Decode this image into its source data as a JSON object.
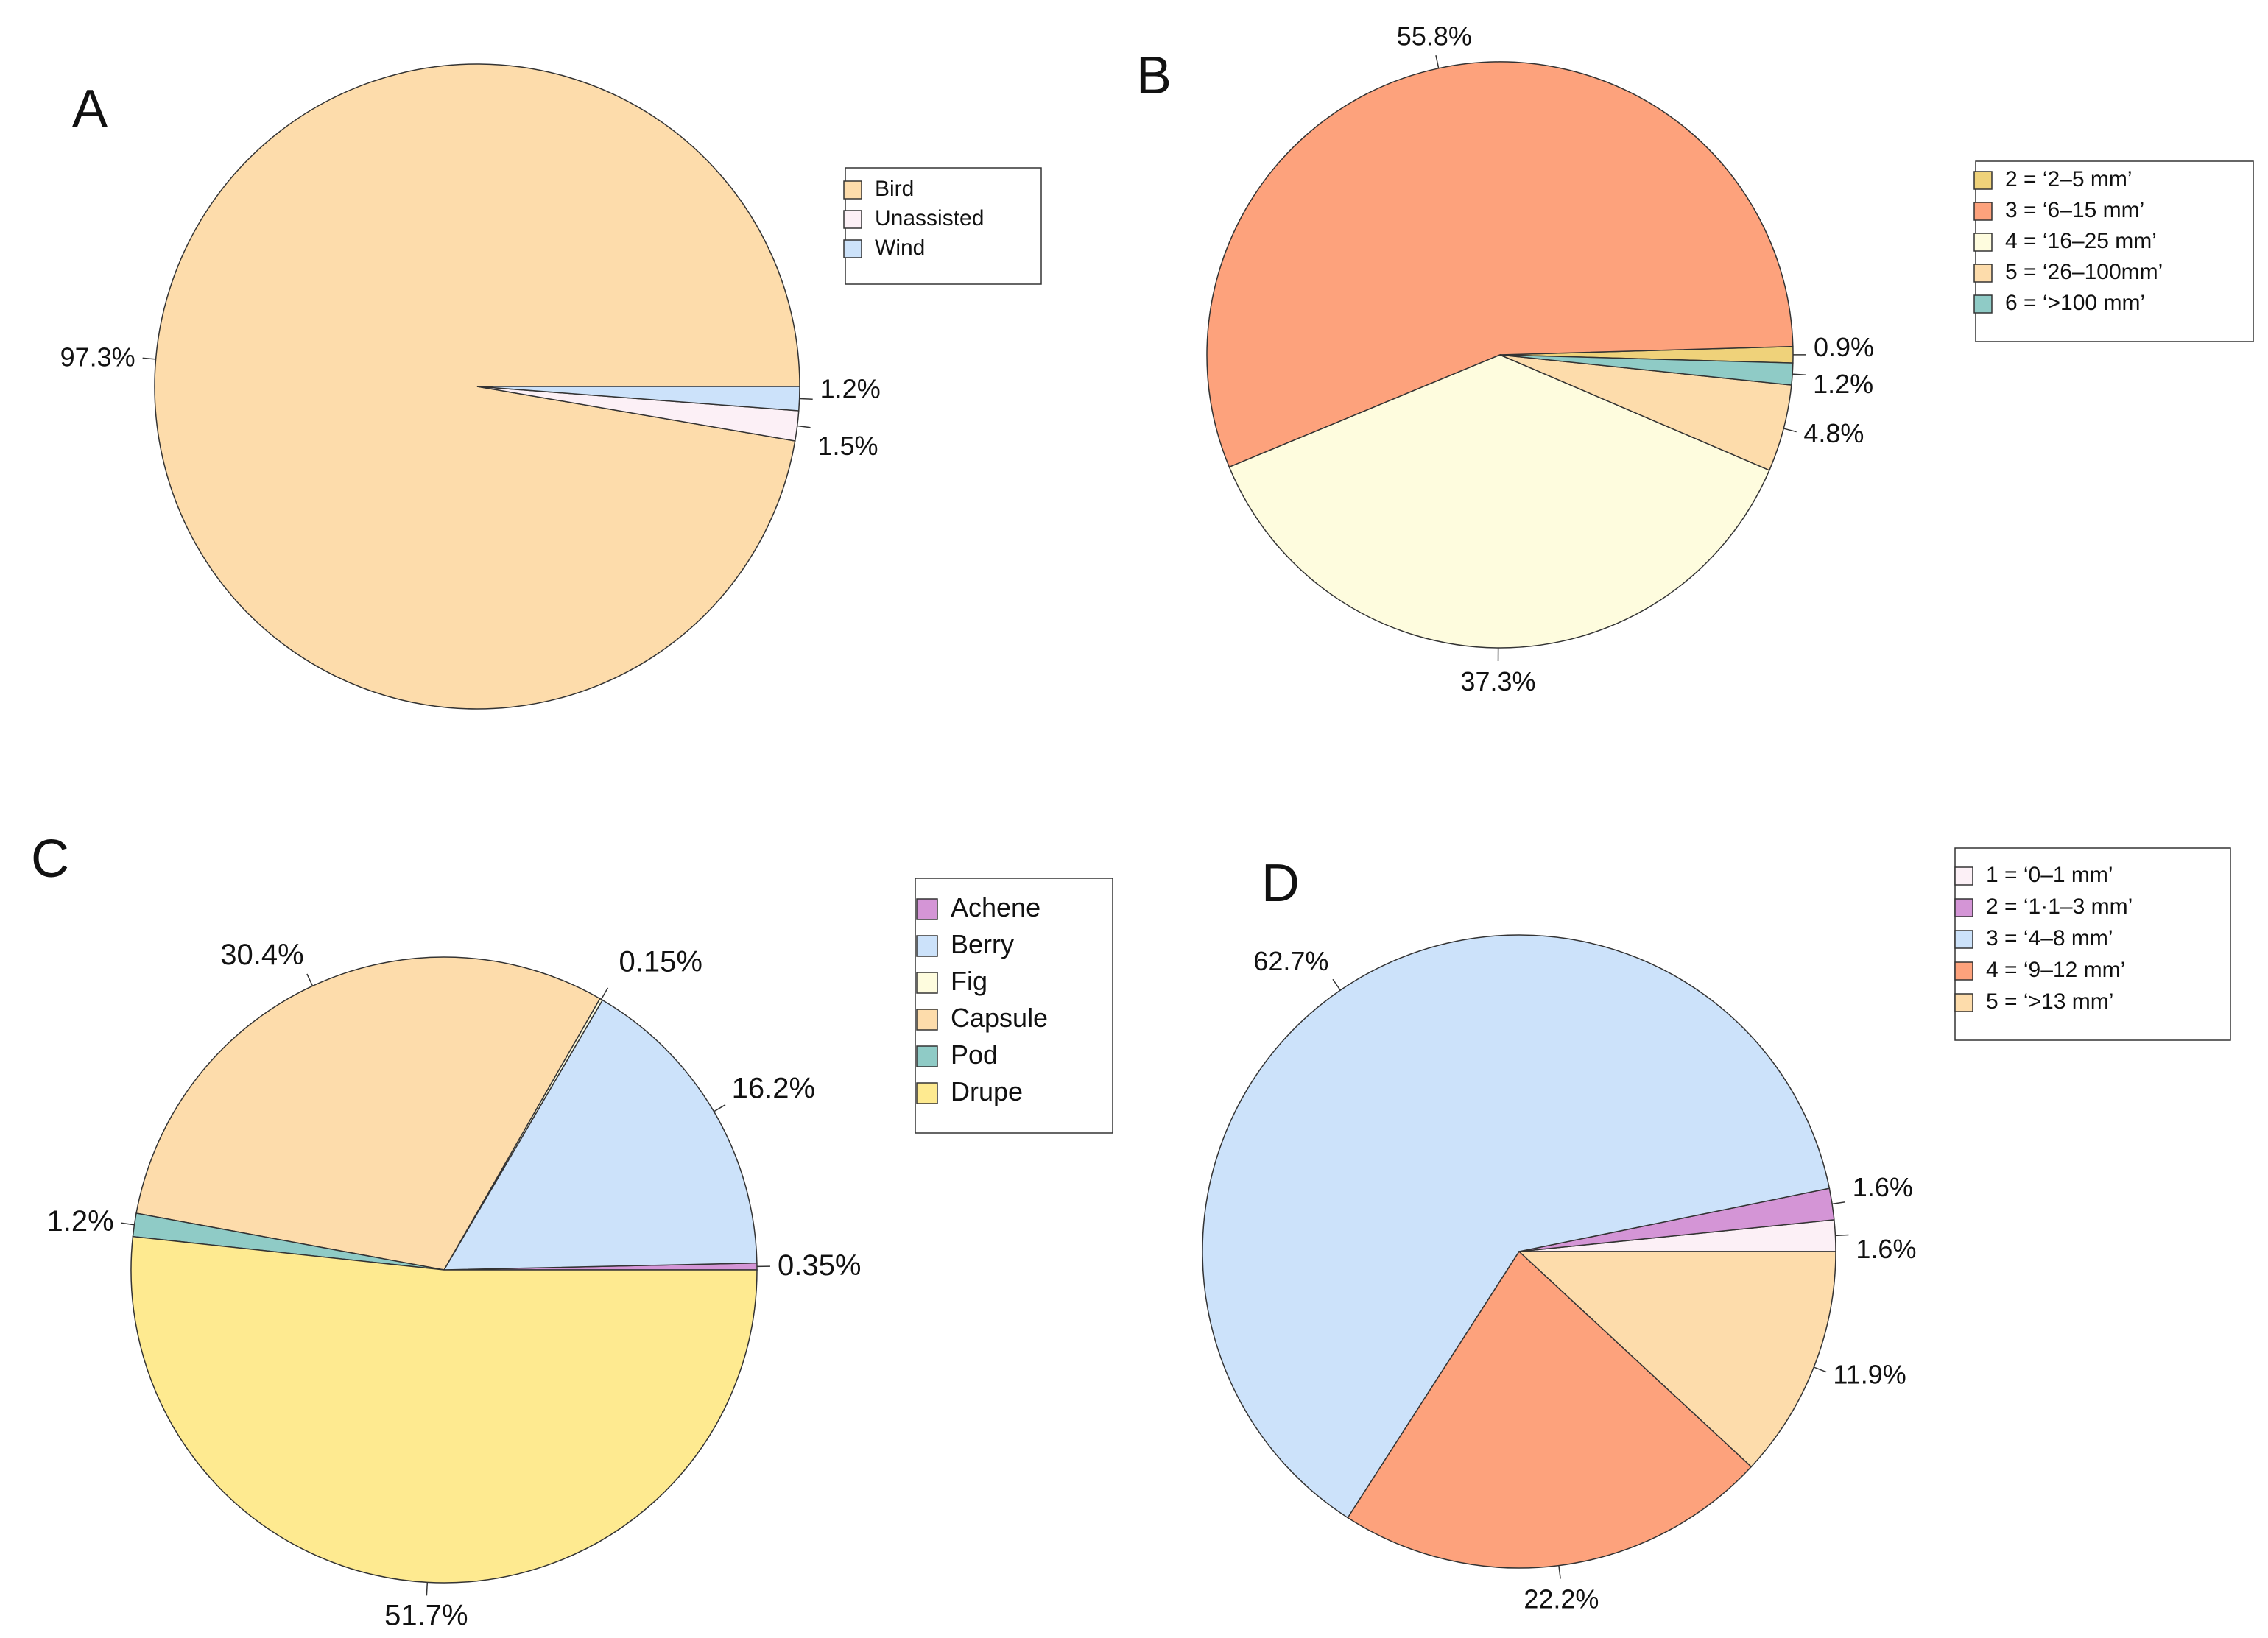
{
  "chart_data": [
    {
      "id": "A",
      "type": "pie",
      "title": "A",
      "legend_position": "right",
      "slices": [
        {
          "name": "Bird",
          "value": 97.3,
          "label": "97.3%",
          "color": "#FDDCAB"
        },
        {
          "name": "Unassisted",
          "value": 1.5,
          "label": "1.5%",
          "color": "#FCF0F6"
        },
        {
          "name": "Wind",
          "value": 1.2,
          "label": "1.2%",
          "color": "#CCE2FA"
        }
      ],
      "legend": [
        "Bird",
        "Unassisted",
        "Wind"
      ]
    },
    {
      "id": "B",
      "type": "pie",
      "title": "B",
      "legend_position": "right",
      "slices": [
        {
          "name": "2 = ‘2–5 mm’",
          "value": 0.9,
          "label": "0.9%",
          "color": "#EFD27A"
        },
        {
          "name": "3 = ‘6–15 mm’",
          "value": 55.8,
          "label": "55.8%",
          "color": "#FDA27C"
        },
        {
          "name": "4 = ‘16–25 mm’",
          "value": 37.3,
          "label": "37.3%",
          "color": "#FEFCDE"
        },
        {
          "name": "5 = ‘26–100mm’",
          "value": 4.8,
          "label": "4.8%",
          "color": "#FDDCAB"
        },
        {
          "name": "6 = ‘>100 mm’",
          "value": 1.2,
          "label": "1.2%",
          "color": "#8FCBC6"
        }
      ],
      "legend": [
        "2 = ‘2–5 mm’",
        "3 = ‘6–15 mm’",
        "4 = ‘16–25 mm’",
        "5 = ‘26–100mm’",
        "6 = ‘>100 mm’"
      ]
    },
    {
      "id": "C",
      "type": "pie",
      "title": "C",
      "legend_position": "right",
      "slices": [
        {
          "name": "Achene",
          "value": 0.35,
          "label": "0.35%",
          "color": "#D495D6"
        },
        {
          "name": "Berry",
          "value": 16.2,
          "label": "16.2%",
          "color": "#CCE2FA"
        },
        {
          "name": "Fig",
          "value": 0.15,
          "label": "0.15%",
          "color": "#FEFCDE"
        },
        {
          "name": "Capsule",
          "value": 30.4,
          "label": "30.4%",
          "color": "#FDDCAB"
        },
        {
          "name": "Pod",
          "value": 1.2,
          "label": "1.2%",
          "color": "#8FCBC6"
        },
        {
          "name": "Drupe",
          "value": 51.7,
          "label": "51.7%",
          "color": "#FEEA90"
        }
      ],
      "legend": [
        "Achene",
        "Berry",
        "Fig",
        "Capsule",
        "Pod",
        "Drupe"
      ]
    },
    {
      "id": "D",
      "type": "pie",
      "title": "D",
      "legend_position": "right",
      "slices": [
        {
          "name": "1 = ‘0–1 mm’",
          "value": 1.6,
          "label": "1.6%",
          "color": "#FCF0F6"
        },
        {
          "name": "2 = ‘1·1–3 mm’",
          "value": 1.6,
          "label": "1.6%",
          "color": "#D495D6"
        },
        {
          "name": "3 = ‘4–8 mm’",
          "value": 62.7,
          "label": "62.7%",
          "color": "#CCE2FA"
        },
        {
          "name": "4 = ‘9–12 mm’",
          "value": 22.2,
          "label": "22.2%",
          "color": "#FDA27C"
        },
        {
          "name": "5 = ‘>13 mm’",
          "value": 11.9,
          "label": "11.9%",
          "color": "#FDDCAB"
        }
      ],
      "legend": [
        "1 = ‘0–1 mm’",
        "2 = ‘1·1–3 mm’",
        "3 = ‘4–8 mm’",
        "4 = ‘9–12 mm’",
        "5 = ‘>13 mm’"
      ]
    }
  ]
}
